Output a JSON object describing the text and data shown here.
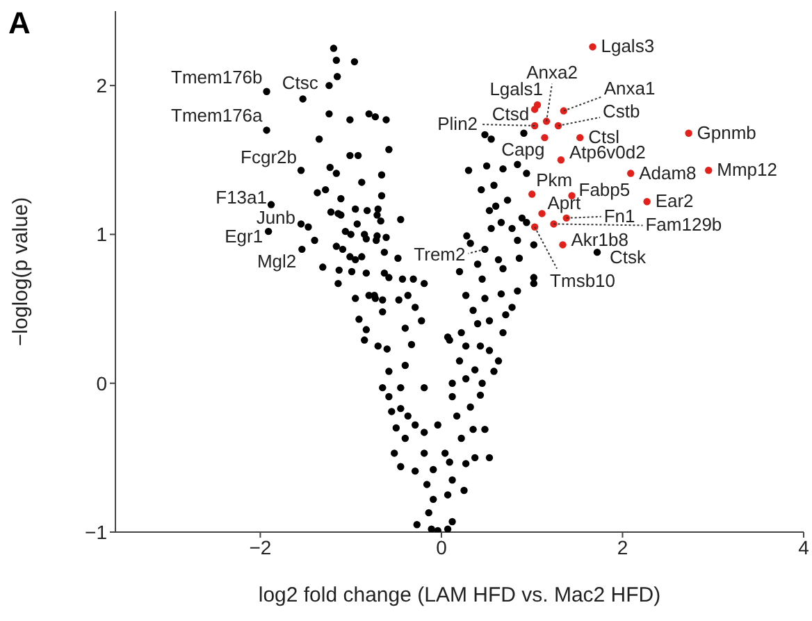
{
  "chart_data": {
    "type": "scatter",
    "title": "A",
    "xlabel": "log2 fold change (LAM HFD vs. Mac2 HFD)",
    "ylabel": "−loglog(p value)",
    "xlim": [
      -3.6,
      4
    ],
    "ylim": [
      -1,
      2.5
    ],
    "xticks": [
      -2,
      0,
      2,
      4
    ],
    "yticks": [
      -1,
      0,
      1,
      2
    ],
    "marker": "circle",
    "grid": false,
    "series": [
      {
        "color": "#000000",
        "x": [
          -1.19,
          -1.16,
          -0.96,
          -1.15,
          -1.24,
          -1.24,
          -1.01,
          -0.8,
          -0.73,
          -0.61,
          -1.35,
          -1.01,
          -0.92,
          -0.58,
          -1.23,
          -1.16,
          -0.66,
          -0.88,
          -1.37,
          -1.28,
          -0.66,
          -1.11,
          -1.22,
          -1.14,
          -1.11,
          -0.95,
          -0.82,
          -0.7,
          -0.71,
          -0.67,
          -0.45,
          -0.93,
          -1.06,
          -1.0,
          -0.85,
          -0.83,
          -0.71,
          -0.72,
          -0.61,
          -1.4,
          -1.16,
          -1.09,
          -1.01,
          -0.95,
          -0.88,
          -0.63,
          -0.48,
          -1.31,
          -1.13,
          -0.99,
          -0.83,
          -0.63,
          -0.58,
          -0.43,
          -0.31,
          -0.74,
          -0.65,
          -0.47,
          -1.93,
          -1.53,
          -1.93,
          -1.55,
          -1.88,
          -1.55,
          -1.47,
          -1.91,
          -1.54,
          0.48,
          1.72,
          -1.14,
          -0.95,
          -0.91,
          -0.8,
          -0.73,
          -0.65,
          -0.83,
          -0.85,
          -0.7,
          -0.6,
          -0.58,
          -0.4,
          -0.33,
          -0.4,
          -0.29,
          -0.22,
          -0.37,
          -0.19,
          -0.65,
          -0.45,
          -0.19,
          -0.58,
          -0.45,
          -0.37,
          -0.55,
          -0.5,
          -0.29,
          -0.19,
          -0.04,
          -0.4,
          -0.52,
          -0.45,
          -0.29,
          -0.09,
          -0.19,
          -0.16,
          -0.09,
          -0.27,
          -0.14,
          -0.11,
          -0.04,
          0.07,
          0.12,
          0.07,
          0.12,
          0.04,
          0.09,
          0.27,
          0.37,
          0.53,
          0.25,
          0.22,
          0.35,
          0.48,
          0.17,
          0.32,
          0.12,
          0.43,
          0.12,
          0.27,
          0.45,
          0.37,
          0.58,
          0.63,
          0.2,
          0.27,
          0.43,
          0.53,
          0.09,
          0.22,
          0.4,
          0.68,
          0.53,
          0.71,
          0.35,
          0.27,
          0.48,
          0.66,
          0.84,
          1.02,
          0.78,
          0.07,
          0.3,
          0.5,
          0.68,
          0.84,
          0.94,
          0.44,
          0.58,
          0.48,
          0.55,
          0.91,
          0.6,
          0.53,
          0.73,
          0.89,
          0.94,
          0.66,
          0.55,
          0.28,
          0.32,
          0.78,
          0.84,
          1.02,
          1.02,
          0.86,
          0.63,
          0.68,
          0.4,
          0.2,
          0.45
        ],
        "values": [
          2.25,
          2.17,
          2.16,
          2.06,
          2.0,
          1.81,
          1.77,
          1.81,
          1.79,
          1.77,
          1.64,
          1.53,
          1.53,
          1.57,
          1.45,
          1.41,
          1.4,
          1.35,
          1.28,
          1.3,
          1.26,
          1.24,
          1.15,
          1.14,
          1.13,
          1.17,
          1.16,
          1.17,
          1.13,
          1.09,
          1.1,
          1.07,
          1.02,
          1.0,
          1.0,
          0.97,
          0.99,
          0.96,
          0.98,
          0.96,
          0.92,
          0.9,
          0.85,
          0.83,
          0.85,
          0.88,
          0.84,
          0.78,
          0.76,
          0.75,
          0.74,
          0.74,
          0.71,
          0.7,
          0.7,
          0.59,
          0.56,
          0.56,
          1.96,
          1.91,
          1.7,
          1.43,
          1.2,
          1.07,
          1.05,
          1.02,
          0.9,
          0.9,
          0.88,
          0.67,
          0.57,
          0.43,
          0.59,
          0.57,
          0.48,
          0.36,
          0.29,
          0.25,
          0.23,
          0.08,
          0.12,
          0.26,
          0.37,
          0.51,
          0.42,
          0.59,
          0.67,
          -0.03,
          -0.03,
          -0.03,
          -0.09,
          -0.17,
          -0.22,
          -0.19,
          -0.3,
          -0.28,
          -0.33,
          -0.28,
          -0.37,
          -0.47,
          -0.56,
          -0.59,
          -0.58,
          -0.47,
          -0.68,
          -0.78,
          -0.95,
          -0.87,
          -0.98,
          -0.99,
          -0.98,
          -0.93,
          -0.75,
          -0.65,
          -0.47,
          -0.53,
          -0.54,
          -0.5,
          -0.5,
          -0.72,
          -0.37,
          -0.31,
          -0.31,
          -0.22,
          -0.16,
          -0.09,
          -0.08,
          0.0,
          0.03,
          0.0,
          0.09,
          0.08,
          0.15,
          0.15,
          0.25,
          0.25,
          0.22,
          0.29,
          0.34,
          0.4,
          0.34,
          0.42,
          0.46,
          0.49,
          0.59,
          0.57,
          0.6,
          0.62,
          0.67,
          0.51,
          0.31,
          1.43,
          1.46,
          1.44,
          1.47,
          1.41,
          1.3,
          1.33,
          1.67,
          1.64,
          1.68,
          1.19,
          1.16,
          1.23,
          1.11,
          1.08,
          1.08,
          1.04,
          0.99,
          0.94,
          1.04,
          0.96,
          0.93,
          0.71,
          0.84,
          0.83,
          0.77,
          0.8,
          0.75,
          0.7
        ]
      },
      {
        "color": "#e3211c",
        "x": [
          1.67,
          1.06,
          1.03,
          1.35,
          1.03,
          1.16,
          1.29,
          1.14,
          1.53,
          2.73,
          1.32,
          2.09,
          2.95,
          1.0,
          1.44,
          2.27,
          1.11,
          1.38,
          1.24,
          1.03,
          1.34
        ],
        "values": [
          2.26,
          1.87,
          1.84,
          1.83,
          1.73,
          1.76,
          1.73,
          1.65,
          1.65,
          1.68,
          1.5,
          1.41,
          1.43,
          1.27,
          1.26,
          1.22,
          1.14,
          1.11,
          1.07,
          1.05,
          0.93
        ]
      }
    ],
    "annotations": [
      {
        "text": "Tmem176b",
        "x": -1.93,
        "y": 1.96
      },
      {
        "text": "Ctsc",
        "x": -1.53,
        "y": 1.91
      },
      {
        "text": "Tmem176a",
        "x": -1.93,
        "y": 1.7
      },
      {
        "text": "Fcgr2b",
        "x": -1.55,
        "y": 1.43
      },
      {
        "text": "F13a1",
        "x": -1.88,
        "y": 1.2
      },
      {
        "text": "Junb",
        "x": -1.55,
        "y": 1.07
      },
      {
        "text": "Egr1",
        "x": -1.91,
        "y": 1.02
      },
      {
        "text": "Mgl2",
        "x": -1.54,
        "y": 0.9
      },
      {
        "text": "Trem2",
        "x": 0.48,
        "y": 0.9
      },
      {
        "text": "Lgals3",
        "x": 1.67,
        "y": 2.26
      },
      {
        "text": "Anxa2",
        "x": 1.16,
        "y": 1.76
      },
      {
        "text": "Lgals1",
        "x": 1.06,
        "y": 1.87
      },
      {
        "text": "Ctsd",
        "x": 1.03,
        "y": 1.84
      },
      {
        "text": "Anxa1",
        "x": 1.35,
        "y": 1.83
      },
      {
        "text": "Plin2",
        "x": 1.03,
        "y": 1.73
      },
      {
        "text": "Cstb",
        "x": 1.29,
        "y": 1.73
      },
      {
        "text": "Capg",
        "x": 1.14,
        "y": 1.65
      },
      {
        "text": "Ctsl",
        "x": 1.53,
        "y": 1.65
      },
      {
        "text": "Gpnmb",
        "x": 2.73,
        "y": 1.68
      },
      {
        "text": "Atp6v0d2",
        "x": 1.32,
        "y": 1.5
      },
      {
        "text": "Adam8",
        "x": 2.09,
        "y": 1.41
      },
      {
        "text": "Mmp12",
        "x": 2.95,
        "y": 1.43
      },
      {
        "text": "Pkm",
        "x": 1.0,
        "y": 1.27
      },
      {
        "text": "Fabp5",
        "x": 1.44,
        "y": 1.26
      },
      {
        "text": "Ear2",
        "x": 2.27,
        "y": 1.22
      },
      {
        "text": "Aprt",
        "x": 1.11,
        "y": 1.14
      },
      {
        "text": "Fn1",
        "x": 1.38,
        "y": 1.11
      },
      {
        "text": "Fam129b",
        "x": 1.24,
        "y": 1.07
      },
      {
        "text": "Tmsb10",
        "x": 1.03,
        "y": 1.05
      },
      {
        "text": "Akr1b8",
        "x": 1.34,
        "y": 0.93
      },
      {
        "text": "Ctsk",
        "x": 1.72,
        "y": 0.88
      }
    ]
  }
}
